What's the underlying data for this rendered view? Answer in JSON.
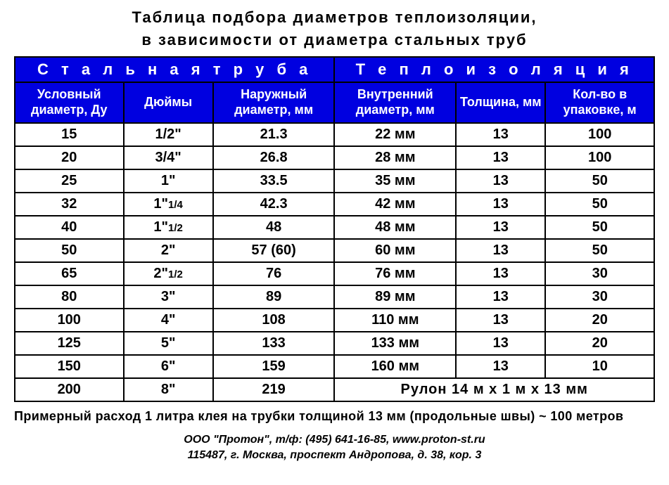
{
  "title_line1": "Таблица  подбора  диаметров  теплоизоляции,",
  "title_line2": "в  зависимости  от  диаметра  стальных труб",
  "group_headers": {
    "left": "С т а л ь н а я    т р у б а",
    "right": "Т е п л о и з о л я ц и я"
  },
  "columns": {
    "c1": "Условный диаметр,  Ду",
    "c2": "Дюймы",
    "c3": "Наружный диаметр,  мм",
    "c4": "Внутренний диаметр,  мм",
    "c5": "Толщина, мм",
    "c6": "Кол-во  в упаковке,  м"
  },
  "col_widths": [
    "17%",
    "14%",
    "19%",
    "19%",
    "14%",
    "17%"
  ],
  "header_bg": "#0000e0",
  "header_fg": "#ffffff",
  "rows": [
    {
      "du": "15",
      "inch": "1/2\"",
      "od": "21.3",
      "id": "22 мм",
      "th": "13",
      "pk": "100"
    },
    {
      "du": "20",
      "inch": "3/4\"",
      "od": "26.8",
      "id": "28 мм",
      "th": "13",
      "pk": "100"
    },
    {
      "du": "25",
      "inch": "1\"",
      "od": "33.5",
      "id": "35 мм",
      "th": "13",
      "pk": "50"
    },
    {
      "du": "32",
      "inch": "1\"1/4",
      "od": "42.3",
      "id": "42 мм",
      "th": "13",
      "pk": "50"
    },
    {
      "du": "40",
      "inch": "1\"1/2",
      "od": "48",
      "id": "48 мм",
      "th": "13",
      "pk": "50"
    },
    {
      "du": "50",
      "inch": "2\"",
      "od": "57 (60)",
      "id": "60 мм",
      "th": "13",
      "pk": "50"
    },
    {
      "du": "65",
      "inch": "2\"1/2",
      "od": "76",
      "id": "76 мм",
      "th": "13",
      "pk": "30"
    },
    {
      "du": "80",
      "inch": "3\"",
      "od": "89",
      "id": "89 мм",
      "th": "13",
      "pk": "30"
    },
    {
      "du": "100",
      "inch": "4\"",
      "od": "108",
      "id": "110 мм",
      "th": "13",
      "pk": "20"
    },
    {
      "du": "125",
      "inch": "5\"",
      "od": "133",
      "id": "133 мм",
      "th": "13",
      "pk": "20"
    },
    {
      "du": "150",
      "inch": "6\"",
      "od": "159",
      "id": "160 мм",
      "th": "13",
      "pk": "10"
    }
  ],
  "last_row": {
    "du": "200",
    "inch": "8\"",
    "od": "219",
    "merged": "Рулон  14 м х 1 м х 13 мм"
  },
  "note": "Примерный расход 1 литра клея на трубки толщиной 13 мм (продольные швы) ~ 100 метров",
  "footer_line1": "ООО \"Протон\",  т/ф: (495) 641-16-85,  www.proton-st.ru",
  "footer_line2": "115487,  г. Москва,  проспект  Андропова,  д. 38,  кор. 3"
}
